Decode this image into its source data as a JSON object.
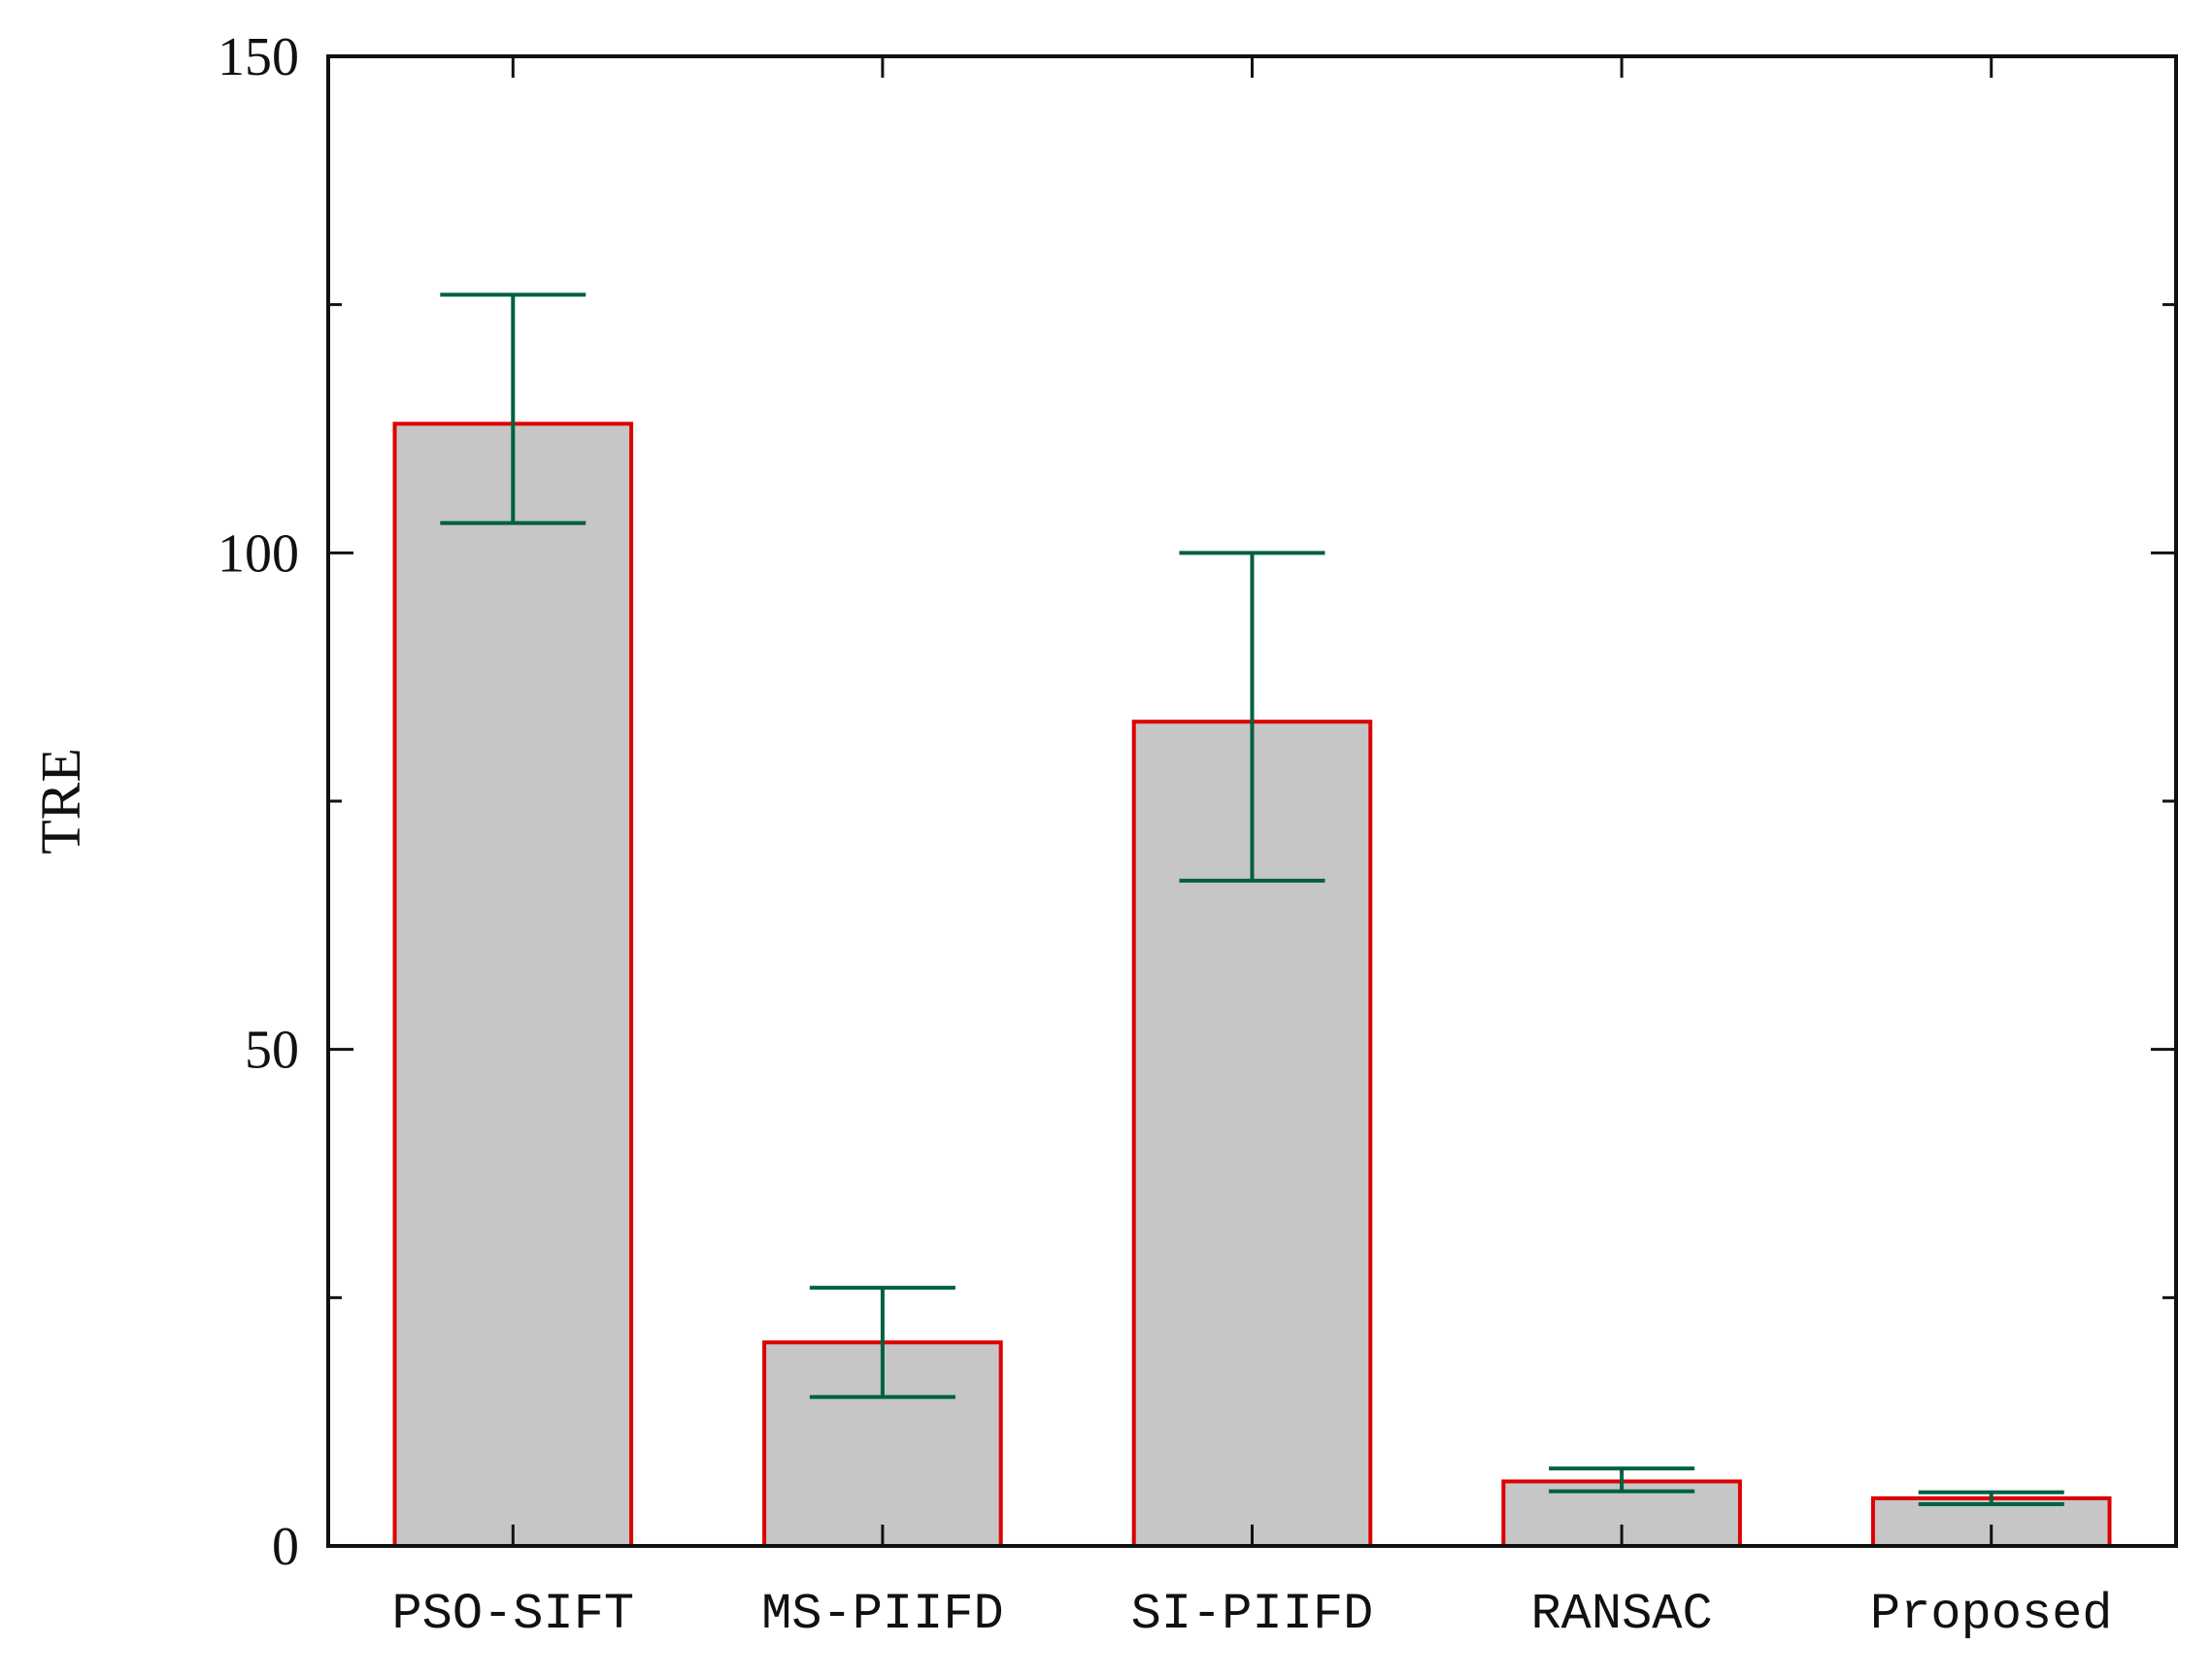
{
  "chart_data": {
    "type": "bar",
    "title": "",
    "xlabel": "",
    "ylabel": "TRE",
    "ylim": [
      0,
      150
    ],
    "yticks": [
      0,
      50,
      100,
      150
    ],
    "minor_yticks": [
      25,
      75,
      125
    ],
    "grid": false,
    "categories": [
      "PSO-SIFT",
      "MS-PIIFD",
      "SI-PIIFD",
      "RANSAC",
      "Proposed"
    ],
    "values": [
      113,
      20.5,
      83,
      6.5,
      4.8
    ],
    "error_low": [
      103,
      15,
      67,
      5.5,
      4.2
    ],
    "error_high": [
      126,
      26,
      100,
      7.8,
      5.4
    ],
    "colors": {
      "bar_fill": "#c6c6c6",
      "bar_edge": "#dd0000",
      "error_bar": "#006040",
      "axis": "#111111"
    }
  }
}
